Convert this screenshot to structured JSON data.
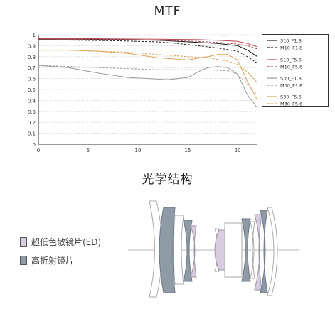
{
  "title": "MTF",
  "lens_title": "光学结构",
  "chart_data": {
    "type": "line",
    "xlim": [
      0,
      22
    ],
    "ylim": [
      0,
      1
    ],
    "xticks": [
      0,
      5,
      10,
      15,
      20
    ],
    "yticks": [
      0,
      0.1,
      0.2,
      0.3,
      0.4,
      0.5,
      0.6,
      0.7,
      0.8,
      0.9,
      1
    ],
    "grid": true,
    "legend_position": "right",
    "series": [
      {
        "name": "S10_F1.8",
        "color": "#1a1a1a",
        "dash": false,
        "x": [
          0,
          4,
          8,
          12,
          14,
          16,
          18,
          20,
          21,
          22
        ],
        "y": [
          0.96,
          0.96,
          0.955,
          0.95,
          0.94,
          0.93,
          0.92,
          0.9,
          0.86,
          0.8
        ]
      },
      {
        "name": "M10_F1.8",
        "color": "#1a1a1a",
        "dash": true,
        "x": [
          0,
          4,
          8,
          12,
          14,
          16,
          18,
          20,
          21,
          22
        ],
        "y": [
          0.955,
          0.95,
          0.945,
          0.935,
          0.92,
          0.9,
          0.88,
          0.85,
          0.8,
          0.74
        ]
      },
      {
        "name": "S10_F5.6",
        "color": "#b5454f",
        "dash": false,
        "x": [
          0,
          4,
          8,
          12,
          16,
          18,
          20,
          21,
          22
        ],
        "y": [
          0.965,
          0.965,
          0.962,
          0.96,
          0.955,
          0.95,
          0.94,
          0.92,
          0.89
        ]
      },
      {
        "name": "M10_F5.6",
        "color": "#b5454f",
        "dash": true,
        "x": [
          0,
          4,
          8,
          12,
          16,
          18,
          20,
          21,
          22
        ],
        "y": [
          0.96,
          0.958,
          0.955,
          0.95,
          0.94,
          0.93,
          0.915,
          0.9,
          0.87
        ]
      },
      {
        "name": "S30_F1.8",
        "color": "#9a9a9a",
        "dash": false,
        "x": [
          0,
          3,
          6,
          9,
          11,
          13,
          15,
          16,
          17,
          18,
          19,
          20,
          21,
          22
        ],
        "y": [
          0.72,
          0.7,
          0.65,
          0.61,
          0.6,
          0.59,
          0.61,
          0.66,
          0.7,
          0.71,
          0.7,
          0.64,
          0.45,
          0.33
        ]
      },
      {
        "name": "M30_F1.8",
        "color": "#9a9a9a",
        "dash": true,
        "x": [
          0,
          3,
          6,
          9,
          12,
          15,
          17,
          19,
          20,
          21,
          22
        ],
        "y": [
          0.72,
          0.71,
          0.7,
          0.69,
          0.68,
          0.68,
          0.68,
          0.67,
          0.64,
          0.55,
          0.45
        ]
      },
      {
        "name": "S30_F5.6",
        "color": "#d9a35a",
        "dash": false,
        "x": [
          0,
          3,
          6,
          9,
          12,
          15,
          17,
          18,
          19,
          20,
          21,
          22
        ],
        "y": [
          0.86,
          0.86,
          0.85,
          0.83,
          0.79,
          0.77,
          0.8,
          0.82,
          0.82,
          0.77,
          0.57,
          0.4
        ]
      },
      {
        "name": "M30_F5.6",
        "color": "#d9a35a",
        "dash": true,
        "x": [
          0,
          3,
          6,
          9,
          12,
          15,
          17,
          19,
          20,
          21,
          22
        ],
        "y": [
          0.86,
          0.86,
          0.85,
          0.84,
          0.82,
          0.8,
          0.79,
          0.76,
          0.73,
          0.66,
          0.56
        ]
      }
    ]
  },
  "lens_legend": [
    {
      "label": "超低色散镜片(ED)",
      "color": "#d8cde0"
    },
    {
      "label": "高折射镜片",
      "color": "#8e9aa6"
    }
  ]
}
